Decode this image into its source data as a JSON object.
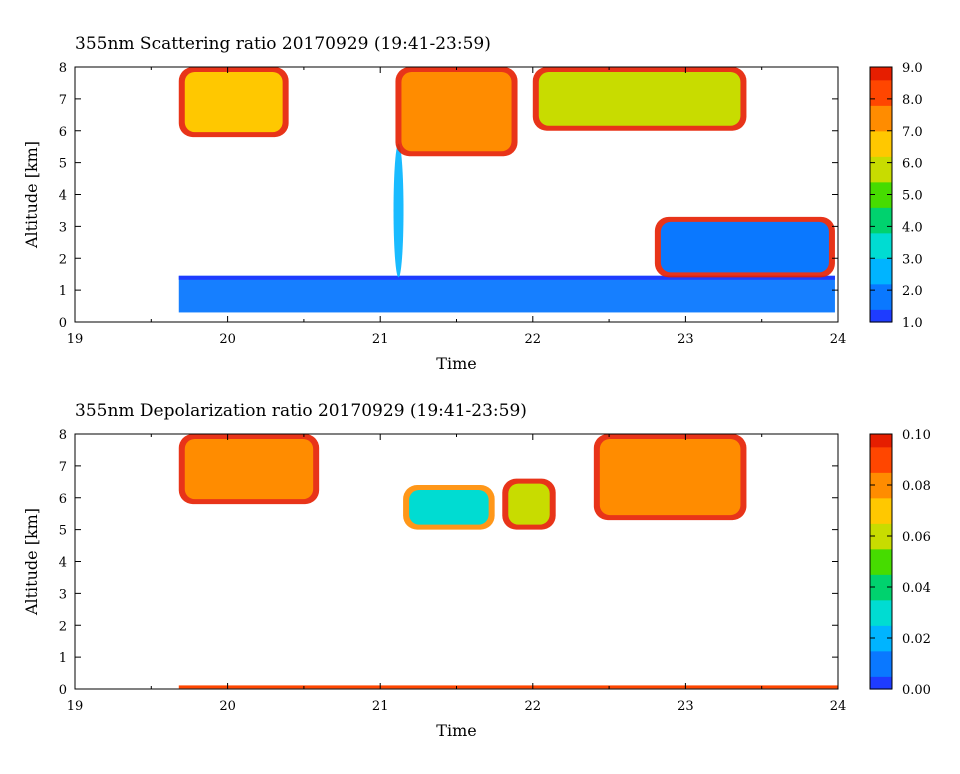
{
  "chart_data": [
    {
      "type": "heatmap",
      "title": "355nm Scattering ratio  20170929 (19:41-23:59)",
      "xlabel": "Time",
      "ylabel": "Altitude [km]",
      "xlim": [
        19,
        24
      ],
      "ylim": [
        0,
        8
      ],
      "x_ticks": [
        "19",
        "20",
        "21",
        "22",
        "23",
        "24"
      ],
      "y_ticks": [
        "0",
        "1",
        "2",
        "3",
        "4",
        "5",
        "6",
        "7",
        "8"
      ],
      "data_start": 19.68,
      "data_end": 23.98,
      "colorbar": {
        "range": [
          1.0,
          9.0
        ],
        "ticks": [
          "1.0",
          "2.0",
          "3.0",
          "4.0",
          "5.0",
          "6.0",
          "7.0",
          "8.0",
          "9.0"
        ]
      },
      "features": [
        {
          "kind": "boundary_layer",
          "x0": 19.68,
          "x1": 23.98,
          "y0": 0.3,
          "y1": 1.45,
          "level": 2.1
        },
        {
          "kind": "plume",
          "x": 21.12,
          "y0": 1.4,
          "y1": 5.6,
          "level": 2.6
        },
        {
          "kind": "cloud",
          "x0": 19.68,
          "x1": 20.4,
          "y0": 5.8,
          "y1": 8.0,
          "level": 6.5
        },
        {
          "kind": "cloud",
          "x0": 21.1,
          "x1": 21.9,
          "y0": 5.2,
          "y1": 8.0,
          "level": 7.0
        },
        {
          "kind": "cloud",
          "x0": 22.0,
          "x1": 23.4,
          "y0": 6.0,
          "y1": 8.0,
          "level": 6.0
        },
        {
          "kind": "diffuse_layer",
          "x0": 22.8,
          "x1": 23.98,
          "y0": 1.4,
          "y1": 3.3,
          "level": 1.6
        }
      ]
    },
    {
      "type": "heatmap",
      "title": "355nm Depolarization ratio  20170929 (19:41-23:59)",
      "xlabel": "Time",
      "ylabel": "Altitude [km]",
      "xlim": [
        19,
        24
      ],
      "ylim": [
        0,
        8
      ],
      "x_ticks": [
        "19",
        "20",
        "21",
        "22",
        "23",
        "24"
      ],
      "y_ticks": [
        "0",
        "1",
        "2",
        "3",
        "4",
        "5",
        "6",
        "7",
        "8"
      ],
      "data_start": 19.68,
      "data_end": 23.98,
      "colorbar": {
        "range": [
          0.0,
          0.1
        ],
        "ticks": [
          "0.00",
          "0.02",
          "0.04",
          "0.06",
          "0.08",
          "0.10"
        ]
      },
      "features": [
        {
          "kind": "cloud",
          "x0": 19.68,
          "x1": 20.6,
          "y0": 5.8,
          "y1": 8.0,
          "level": 0.08
        },
        {
          "kind": "cloud_core",
          "x0": 21.15,
          "x1": 21.75,
          "y0": 5.0,
          "y1": 6.4,
          "level": 0.025
        },
        {
          "kind": "cloud",
          "x0": 21.8,
          "x1": 22.15,
          "y0": 5.0,
          "y1": 6.6,
          "level": 0.06
        },
        {
          "kind": "cloud",
          "x0": 22.4,
          "x1": 23.4,
          "y0": 5.3,
          "y1": 8.0,
          "level": 0.08
        },
        {
          "kind": "surface_line",
          "x0": 19.68,
          "x1": 24.0,
          "y": 0.05,
          "level": 0.085
        }
      ]
    }
  ]
}
